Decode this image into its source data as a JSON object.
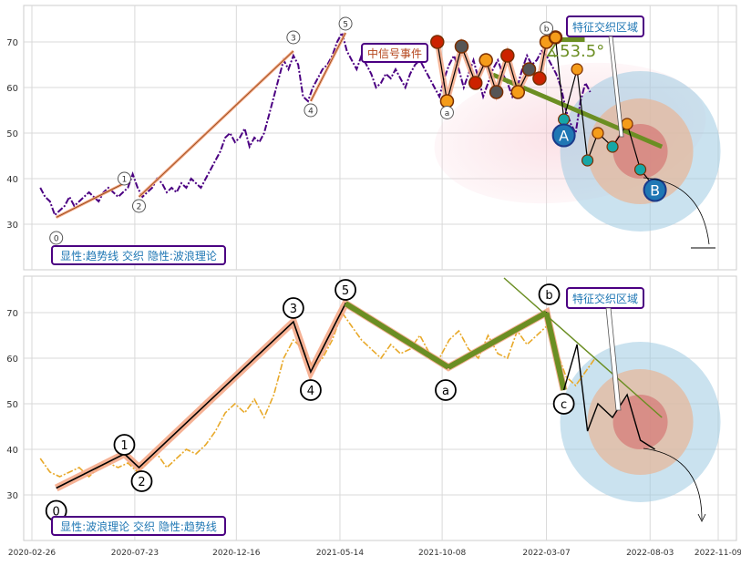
{
  "x_axis": {
    "type": "date",
    "range": [
      "2020-02-26",
      "2022-11-09"
    ],
    "tick_labels": [
      "2020-02-26",
      "2020-07-23",
      "2020-12-16",
      "2021-05-14",
      "2021-10-08",
      "2022-03-07",
      "2022-08-03",
      "2022-11-09"
    ]
  },
  "colors": {
    "top_price": "#4b0082",
    "bottom_price": "#e8a92a",
    "trend_green": "#6b8e23",
    "wave_black": "#000000",
    "trend_salmon": "#f4a582",
    "label_border": "#4b0082",
    "label_text": "#1f77b4",
    "zone_blue": "#9ecae1",
    "zone_tan": "#e6b89c",
    "zone_red": "#d46a6a",
    "red_marker": "#cc2200",
    "orange_marker": "#f59c1a",
    "blue_marker": "#1f77b4",
    "teal_marker": "#17a6a6"
  },
  "chart_data": [
    {
      "type": "line",
      "panel": "top",
      "ylim": [
        20,
        78
      ],
      "yticks": [
        30,
        40,
        50,
        60,
        70
      ],
      "grid": true,
      "corner_label": "显性:趋势线 交织 隐性:波浪理论",
      "annotations": {
        "zone_label": "特征交织区域",
        "signal_label": "中信号事件",
        "angle_label": "∡53.5°",
        "big_points": [
          "A",
          "B"
        ]
      },
      "series": [
        {
          "style": "dashdot",
          "x": [
            "2020-03-09",
            "2020-03-16",
            "2020-03-23",
            "2020-03-30",
            "2020-04-06",
            "2020-04-13",
            "2020-04-20",
            "2020-04-27",
            "2020-05-04",
            "2020-05-11",
            "2020-05-18",
            "2020-05-25",
            "2020-06-01",
            "2020-06-08",
            "2020-06-15",
            "2020-06-22",
            "2020-06-29",
            "2020-07-06",
            "2020-07-13",
            "2020-07-20",
            "2020-07-27",
            "2020-08-03",
            "2020-08-10",
            "2020-08-17",
            "2020-08-24",
            "2020-08-31",
            "2020-09-07",
            "2020-09-14",
            "2020-09-21",
            "2020-09-28",
            "2020-10-05",
            "2020-10-12",
            "2020-10-19",
            "2020-10-26",
            "2020-11-02",
            "2020-11-09",
            "2020-11-16",
            "2020-11-23",
            "2020-11-30",
            "2020-12-07",
            "2020-12-14",
            "2020-12-21",
            "2020-12-28",
            "2021-01-04",
            "2021-01-11",
            "2021-01-18",
            "2021-01-25",
            "2021-02-01",
            "2021-02-08",
            "2021-02-15",
            "2021-02-22",
            "2021-03-01",
            "2021-03-08",
            "2021-03-15",
            "2021-03-22",
            "2021-03-29",
            "2021-04-05",
            "2021-04-12",
            "2021-04-19",
            "2021-04-26",
            "2021-05-03",
            "2021-05-10",
            "2021-05-17",
            "2021-05-24",
            "2021-05-31",
            "2021-06-07",
            "2021-06-14",
            "2021-06-21",
            "2021-06-28",
            "2021-07-05",
            "2021-07-12",
            "2021-07-19",
            "2021-07-26",
            "2021-08-02",
            "2021-08-09",
            "2021-08-16",
            "2021-08-23",
            "2021-08-30",
            "2021-09-06",
            "2021-09-13",
            "2021-09-20",
            "2021-09-27",
            "2021-10-04",
            "2021-10-11",
            "2021-10-18",
            "2021-10-25",
            "2021-11-01",
            "2021-11-08",
            "2021-11-15",
            "2021-11-22",
            "2021-11-29",
            "2021-12-06",
            "2021-12-13",
            "2021-12-20",
            "2021-12-27",
            "2022-01-03",
            "2022-01-10",
            "2022-01-17",
            "2022-01-24",
            "2022-01-31",
            "2022-02-07",
            "2022-02-14",
            "2022-02-21",
            "2022-02-28",
            "2022-03-07",
            "2022-03-14",
            "2022-03-21",
            "2022-03-28",
            "2022-04-04",
            "2022-04-11",
            "2022-04-18",
            "2022-04-25",
            "2022-05-02",
            "2022-05-09"
          ],
          "y": [
            38,
            36,
            35,
            32,
            33,
            34,
            36,
            34,
            35,
            36,
            37,
            36,
            35,
            37,
            38,
            37,
            36,
            37,
            38,
            41,
            38,
            36,
            37,
            38,
            40,
            39,
            37,
            38,
            37,
            39,
            38,
            40,
            39,
            38,
            40,
            42,
            44,
            46,
            49,
            50,
            48,
            49,
            51,
            47,
            49,
            48,
            50,
            54,
            58,
            62,
            66,
            64,
            67,
            65,
            58,
            57,
            60,
            62,
            64,
            65,
            67,
            70,
            72,
            68,
            66,
            64,
            67,
            65,
            63,
            60,
            61,
            63,
            62,
            64,
            62,
            60,
            63,
            65,
            66,
            64,
            62,
            60,
            58,
            62,
            65,
            67,
            64,
            60,
            63,
            66,
            62,
            58,
            61,
            64,
            66,
            63,
            61,
            58,
            60,
            64,
            67,
            65,
            66,
            68,
            67,
            65,
            63,
            60,
            55,
            52,
            50,
            57,
            61,
            59
          ]
        }
      ]
    },
    {
      "type": "line",
      "panel": "bottom",
      "ylim": [
        20,
        78
      ],
      "yticks": [
        30,
        40,
        50,
        60,
        70
      ],
      "grid": true,
      "corner_label": "显性:波浪理论 交织 隐性:趋势线",
      "annotations": {
        "zone_label": "特征交织区域"
      },
      "wave_points": [
        {
          "label": "0",
          "x": "2020-04-01",
          "y": 31.5
        },
        {
          "label": "1",
          "x": "2020-07-08",
          "y": 39
        },
        {
          "label": "2",
          "x": "2020-07-29",
          "y": 36
        },
        {
          "label": "3",
          "x": "2021-03-08",
          "y": 68
        },
        {
          "label": "4",
          "x": "2021-04-02",
          "y": 57
        },
        {
          "label": "5",
          "x": "2021-05-22",
          "y": 72
        },
        {
          "label": "a",
          "x": "2021-10-17",
          "y": 58
        },
        {
          "label": "b",
          "x": "2022-03-07",
          "y": 70
        },
        {
          "label": "c",
          "x": "2022-04-01",
          "y": 53
        }
      ],
      "series": [
        {
          "style": "dashdot",
          "x": [
            "2020-03-09",
            "2020-03-23",
            "2020-04-06",
            "2020-04-20",
            "2020-05-04",
            "2020-05-18",
            "2020-06-01",
            "2020-06-15",
            "2020-06-29",
            "2020-07-13",
            "2020-07-27",
            "2020-08-10",
            "2020-08-24",
            "2020-09-07",
            "2020-09-21",
            "2020-10-05",
            "2020-10-19",
            "2020-11-02",
            "2020-11-16",
            "2020-11-30",
            "2020-12-14",
            "2020-12-28",
            "2021-01-11",
            "2021-01-25",
            "2021-02-08",
            "2021-02-22",
            "2021-03-08",
            "2021-03-22",
            "2021-04-05",
            "2021-04-19",
            "2021-05-03",
            "2021-05-17",
            "2021-05-31",
            "2021-06-14",
            "2021-06-28",
            "2021-07-12",
            "2021-07-26",
            "2021-08-09",
            "2021-08-23",
            "2021-09-06",
            "2021-09-20",
            "2021-10-04",
            "2021-10-18",
            "2021-11-01",
            "2021-11-15",
            "2021-11-29",
            "2021-12-13",
            "2021-12-27",
            "2022-01-10",
            "2022-01-24",
            "2022-02-07",
            "2022-02-21",
            "2022-03-07",
            "2022-03-21",
            "2022-04-04",
            "2022-04-18",
            "2022-05-02",
            "2022-05-16"
          ],
          "y": [
            38,
            35,
            34,
            35,
            36,
            34,
            36,
            37,
            36,
            37,
            35,
            37,
            39,
            36,
            38,
            40,
            39,
            41,
            44,
            48,
            50,
            48,
            51,
            47,
            52,
            60,
            64,
            62,
            58,
            60,
            64,
            70,
            67,
            64,
            62,
            60,
            63,
            61,
            62,
            65,
            61,
            60,
            64,
            66,
            62,
            60,
            65,
            61,
            60,
            66,
            63,
            65,
            67,
            62,
            56,
            54,
            57,
            60
          ]
        }
      ]
    }
  ]
}
